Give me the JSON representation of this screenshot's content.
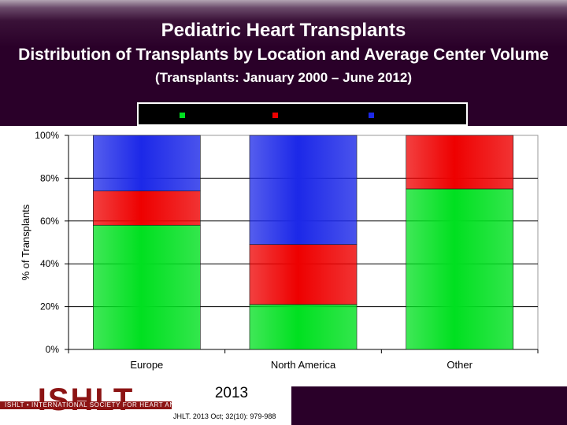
{
  "header": {
    "title": "Pediatric Heart Transplants",
    "subtitle_main": "Distribution of Transplants by Location and Average Center Volume",
    "subtitle_small": "(Transplants: January 2000 – June 2012)"
  },
  "colors": {
    "background": "#2a0029",
    "plot_background": "#ffffff",
    "series_green": "#00e020",
    "series_red": "#ee0000",
    "series_blue": "#1c28e8",
    "logo_red": "#8c1414"
  },
  "chart_data": {
    "type": "bar",
    "stacked": true,
    "title": "",
    "xlabel": "",
    "ylabel": "% of Transplants",
    "categories": [
      "Europe",
      "North America",
      "Other"
    ],
    "ylim": [
      0,
      100
    ],
    "y_ticks": [
      "0%",
      "20%",
      "40%",
      "60%",
      "80%",
      "100%"
    ],
    "grid": true,
    "legend_position": "top",
    "series": [
      {
        "color": "#00e020",
        "values": [
          58,
          21,
          75
        ]
      },
      {
        "color": "#ee0000",
        "values": [
          16,
          28,
          25
        ]
      },
      {
        "color": "#1c28e8",
        "values": [
          26,
          51,
          0
        ]
      }
    ]
  },
  "footer": {
    "logo_text": "ISHLT",
    "logo_tagline": "ISHLT • INTERNATIONAL SOCIETY FOR HEART AND LUNG TRANSPLANTATION",
    "year": "2013",
    "citation": "JHLT. 2013 Oct; 32(10): 979-988"
  }
}
